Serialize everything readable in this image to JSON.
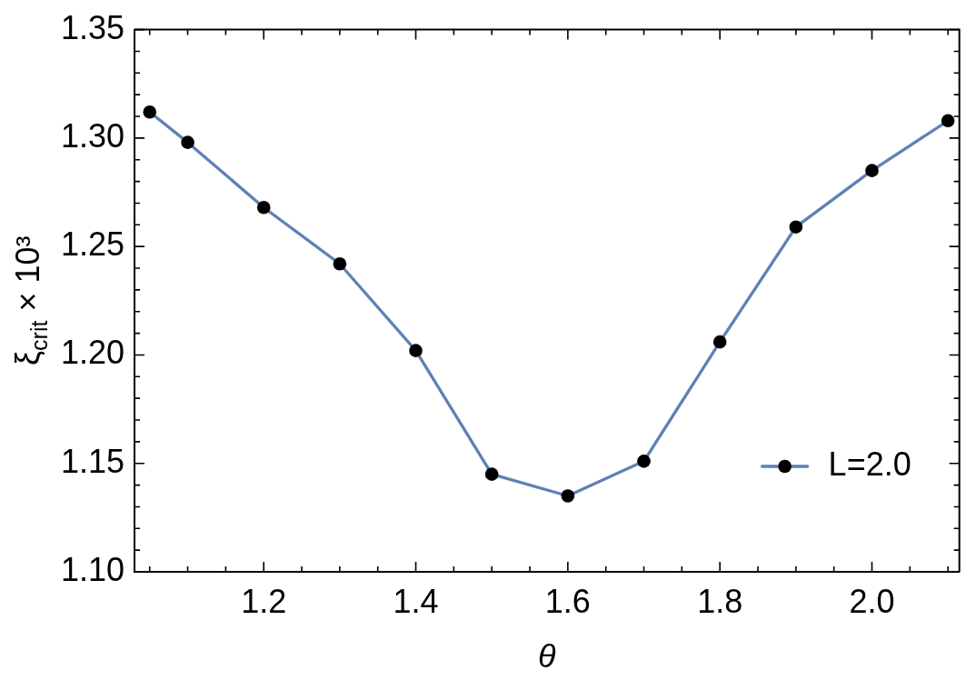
{
  "chart_data": {
    "type": "line",
    "xlabel": "θ",
    "ylabel": "ξ$_{crit}$ × 10³",
    "x": [
      1.05,
      1.1,
      1.2,
      1.3,
      1.4,
      1.5,
      1.6,
      1.7,
      1.8,
      1.9,
      2.0,
      2.1
    ],
    "series": [
      {
        "name": "L=2.0",
        "color": "#5e81b5",
        "colors": [
          "#000000",
          "#000000",
          "#000000",
          "#000000",
          "#000000",
          "#000000",
          "#000000",
          "#000000",
          "#000000",
          "#000000",
          "#000000",
          "#000000"
        ],
        "values": [
          1.312,
          1.298,
          1.268,
          1.242,
          1.202,
          1.145,
          1.135,
          1.151,
          1.206,
          1.259,
          1.285,
          1.308
        ]
      }
    ],
    "xlim": [
      1.03,
      2.115
    ],
    "ylim": [
      1.1,
      1.35
    ],
    "xticks": [
      {
        "value": 1.05,
        "label": null
      },
      {
        "value": 1.1,
        "label": null
      },
      {
        "value": 1.15,
        "label": null
      },
      1.2,
      {
        "value": 1.25,
        "label": null
      },
      {
        "value": 1.3,
        "label": null
      },
      {
        "value": 1.35,
        "label": null
      },
      1.4,
      {
        "value": 1.45,
        "label": null
      },
      {
        "value": 1.5,
        "label": null
      },
      {
        "value": 1.55,
        "label": null
      },
      1.6,
      {
        "value": 1.65,
        "label": null
      },
      {
        "value": 1.7,
        "label": null
      },
      {
        "value": 1.75,
        "label": null
      },
      1.8,
      {
        "value": 1.85,
        "label": null
      },
      {
        "value": 1.9,
        "label": null
      },
      {
        "value": 1.95,
        "label": null
      },
      {
        "value": 2,
        "label": "2.0"
      },
      {
        "value": 2.05,
        "label": null
      },
      {
        "value": 2.1,
        "label": null
      }
    ],
    "yticks": [
      {
        "value": 1.1,
        "label": "1.10"
      },
      {
        "value": 1.11,
        "label": null
      },
      {
        "value": 1.12,
        "label": null
      },
      {
        "value": 1.13,
        "label": null
      },
      {
        "value": 1.14,
        "label": null
      },
      1.15,
      {
        "value": 1.16,
        "label": null
      },
      {
        "value": 1.17,
        "label": null
      },
      {
        "value": 1.18,
        "label": null
      },
      {
        "value": 1.19,
        "label": null
      },
      {
        "value": 1.2,
        "label": "1.20"
      },
      {
        "value": 1.21,
        "label": null
      },
      {
        "value": 1.22,
        "label": null
      },
      {
        "value": 1.23,
        "label": null
      },
      {
        "value": 1.24,
        "label": null
      },
      1.25,
      {
        "value": 1.26,
        "label": null
      },
      {
        "value": 1.27,
        "label": null
      },
      {
        "value": 1.28,
        "label": null
      },
      {
        "value": 1.29,
        "label": null
      },
      {
        "value": 1.3,
        "label": "1.30"
      },
      {
        "value": 1.31,
        "label": null
      },
      {
        "value": 1.32,
        "label": null
      },
      {
        "value": 1.33,
        "label": null
      },
      {
        "value": 1.34,
        "label": null
      },
      1.35
    ],
    "legend": "bottom right",
    "marker": "circle",
    "line_style": "solid"
  }
}
